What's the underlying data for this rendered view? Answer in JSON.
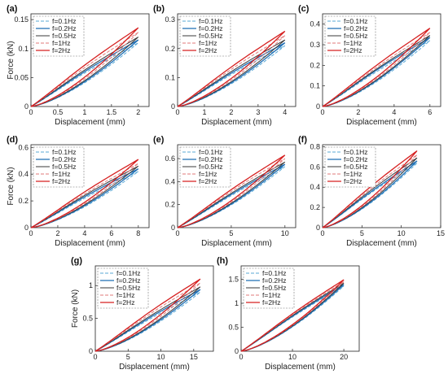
{
  "figure": {
    "legend_entries": [
      "f=0.1Hz",
      "f=0.2Hz",
      "f=0.5Hz",
      "f=1Hz",
      "f=2Hz"
    ],
    "colors": {
      "f=0.1Hz": "#5aa9d6",
      "f=0.2Hz": "#1f6fb5",
      "f=0.5Hz": "#3a3a3a",
      "f=1Hz": "#e07a7a",
      "f=2Hz": "#d62020"
    }
  },
  "chart_data": [
    {
      "type": "line",
      "panel_label": "(a)",
      "xlabel": "Displacement (mm)",
      "ylabel": "Force (kN)",
      "xlim": [
        0,
        2.2
      ],
      "ylim": [
        0,
        0.16
      ],
      "xticks": [
        0,
        0.5,
        1,
        1.5,
        2
      ],
      "yticks": [
        0,
        0.05,
        0.1,
        0.15
      ],
      "legend": "top-left",
      "grid": false,
      "series": [
        {
          "name": "f=0.1Hz",
          "peak": [
            2,
            0.11
          ]
        },
        {
          "name": "f=0.2Hz",
          "peak": [
            2,
            0.115
          ]
        },
        {
          "name": "f=0.5Hz",
          "peak": [
            2,
            0.12
          ]
        },
        {
          "name": "f=1Hz",
          "peak": [
            2,
            0.128
          ]
        },
        {
          "name": "f=2Hz",
          "peak": [
            2,
            0.136
          ]
        }
      ]
    },
    {
      "type": "line",
      "panel_label": "(b)",
      "xlabel": "Displacement (mm)",
      "ylabel": "",
      "xlim": [
        0,
        4.4
      ],
      "ylim": [
        0,
        0.32
      ],
      "xticks": [
        0,
        1,
        2,
        3,
        4
      ],
      "yticks": [
        0,
        0.1,
        0.2,
        0.3
      ],
      "legend": "top-left",
      "grid": false,
      "series": [
        {
          "name": "f=0.1Hz",
          "peak": [
            4,
            0.21
          ]
        },
        {
          "name": "f=0.2Hz",
          "peak": [
            4,
            0.22
          ]
        },
        {
          "name": "f=0.5Hz",
          "peak": [
            4,
            0.23
          ]
        },
        {
          "name": "f=1Hz",
          "peak": [
            4,
            0.245
          ]
        },
        {
          "name": "f=2Hz",
          "peak": [
            4,
            0.26
          ]
        }
      ]
    },
    {
      "type": "line",
      "panel_label": "(c)",
      "xlabel": "Displacement (mm)",
      "ylabel": "",
      "xlim": [
        0,
        6.6
      ],
      "ylim": [
        0,
        0.45
      ],
      "xticks": [
        0,
        2,
        4,
        6
      ],
      "yticks": [
        0,
        0.1,
        0.2,
        0.3,
        0.4
      ],
      "legend": "top-left",
      "grid": false,
      "series": [
        {
          "name": "f=0.1Hz",
          "peak": [
            6,
            0.32
          ]
        },
        {
          "name": "f=0.2Hz",
          "peak": [
            6,
            0.335
          ]
        },
        {
          "name": "f=0.5Hz",
          "peak": [
            6,
            0.345
          ]
        },
        {
          "name": "f=1Hz",
          "peak": [
            6,
            0.36
          ]
        },
        {
          "name": "f=2Hz",
          "peak": [
            6,
            0.38
          ]
        }
      ]
    },
    {
      "type": "line",
      "panel_label": "(d)",
      "xlabel": "Displacement (mm)",
      "ylabel": "Force (kN)",
      "xlim": [
        0,
        8.8
      ],
      "ylim": [
        0,
        0.62
      ],
      "xticks": [
        0,
        2,
        4,
        6,
        8
      ],
      "yticks": [
        0,
        0.2,
        0.4,
        0.6
      ],
      "legend": "top-left",
      "grid": false,
      "series": [
        {
          "name": "f=0.1Hz",
          "peak": [
            8,
            0.42
          ]
        },
        {
          "name": "f=0.2Hz",
          "peak": [
            8,
            0.44
          ]
        },
        {
          "name": "f=0.5Hz",
          "peak": [
            8,
            0.46
          ]
        },
        {
          "name": "f=1Hz",
          "peak": [
            8,
            0.48
          ]
        },
        {
          "name": "f=2Hz",
          "peak": [
            8,
            0.51
          ]
        }
      ]
    },
    {
      "type": "line",
      "panel_label": "(e)",
      "xlabel": "Displacement (mm)",
      "ylabel": "",
      "xlim": [
        0,
        11
      ],
      "ylim": [
        0,
        0.72
      ],
      "xticks": [
        0,
        5,
        10
      ],
      "yticks": [
        0,
        0.2,
        0.4,
        0.6
      ],
      "legend": "top-left",
      "grid": false,
      "series": [
        {
          "name": "f=0.1Hz",
          "peak": [
            10,
            0.53
          ]
        },
        {
          "name": "f=0.2Hz",
          "peak": [
            10,
            0.55
          ]
        },
        {
          "name": "f=0.5Hz",
          "peak": [
            10,
            0.57
          ]
        },
        {
          "name": "f=1Hz",
          "peak": [
            10,
            0.6
          ]
        },
        {
          "name": "f=2Hz",
          "peak": [
            10,
            0.63
          ]
        }
      ]
    },
    {
      "type": "line",
      "panel_label": "(f)",
      "xlabel": "Displacement (mm)",
      "ylabel": "",
      "xlim": [
        0,
        15
      ],
      "ylim": [
        0,
        0.82
      ],
      "xticks": [
        0,
        5,
        10,
        15
      ],
      "yticks": [
        0,
        0.2,
        0.4,
        0.6,
        0.8
      ],
      "legend": "top-left",
      "grid": false,
      "series": [
        {
          "name": "f=0.1Hz",
          "peak": [
            12,
            0.64
          ]
        },
        {
          "name": "f=0.2Hz",
          "peak": [
            12,
            0.66
          ]
        },
        {
          "name": "f=0.5Hz",
          "peak": [
            12,
            0.69
          ]
        },
        {
          "name": "f=1Hz",
          "peak": [
            12,
            0.72
          ]
        },
        {
          "name": "f=2Hz",
          "peak": [
            12,
            0.76
          ]
        }
      ]
    },
    {
      "type": "line",
      "panel_label": "(g)",
      "xlabel": "Displacement (mm)",
      "ylabel": "Force (kN)",
      "xlim": [
        0,
        18
      ],
      "ylim": [
        0,
        1.3
      ],
      "xticks": [
        0,
        5,
        10,
        15
      ],
      "yticks": [
        0,
        0.5,
        1
      ],
      "legend": "top-left",
      "grid": false,
      "series": [
        {
          "name": "f=0.1Hz",
          "peak": [
            16,
            0.9
          ]
        },
        {
          "name": "f=0.2Hz",
          "peak": [
            16,
            0.94
          ]
        },
        {
          "name": "f=0.5Hz",
          "peak": [
            16,
            0.98
          ]
        },
        {
          "name": "f=1Hz",
          "peak": [
            16,
            1.04
          ]
        },
        {
          "name": "f=2Hz",
          "peak": [
            16,
            1.1
          ]
        }
      ]
    },
    {
      "type": "line",
      "panel_label": "(h)",
      "xlabel": "Displacement (mm)",
      "ylabel": "",
      "xlim": [
        0,
        23
      ],
      "ylim": [
        0,
        1.78
      ],
      "xticks": [
        0,
        10,
        20
      ],
      "yticks": [
        0,
        0.5,
        1,
        1.5
      ],
      "legend": "top-left",
      "grid": false,
      "series": [
        {
          "name": "f=0.1Hz",
          "peak": [
            20,
            1.36
          ]
        },
        {
          "name": "f=0.2Hz",
          "peak": [
            20,
            1.39
          ]
        },
        {
          "name": "f=0.5Hz",
          "peak": [
            20,
            1.42
          ]
        },
        {
          "name": "f=1Hz",
          "peak": [
            20,
            1.45
          ]
        },
        {
          "name": "f=2Hz",
          "peak": [
            20,
            1.49
          ]
        }
      ]
    }
  ]
}
